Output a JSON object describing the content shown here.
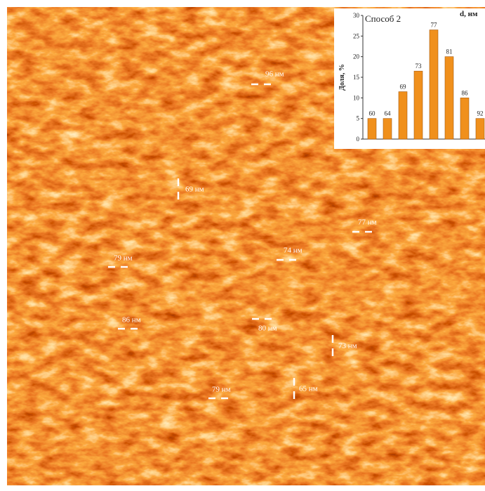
{
  "chart_data": {
    "type": "bar",
    "title": "Способ 2",
    "x_label": "d, нм",
    "y_label": "Доля, %",
    "categories": [
      "60",
      "64",
      "69",
      "73",
      "77",
      "81",
      "86",
      "92"
    ],
    "values": [
      5,
      5,
      11.5,
      16.5,
      26.5,
      20,
      10,
      5
    ],
    "color": "#f0901c",
    "ylim": [
      0,
      30
    ],
    "yticks": [
      0,
      5,
      10,
      15,
      20,
      25,
      30
    ]
  },
  "annotations": [
    {
      "label": "96 нм"
    },
    {
      "label": "69 нм"
    },
    {
      "label": "77 нм"
    },
    {
      "label": "79 нм"
    },
    {
      "label": "74 нм"
    },
    {
      "label": "86 нм"
    },
    {
      "label": "80 нм"
    },
    {
      "label": "73 нм"
    },
    {
      "label": "79 нм"
    },
    {
      "label": "65 нм"
    }
  ]
}
